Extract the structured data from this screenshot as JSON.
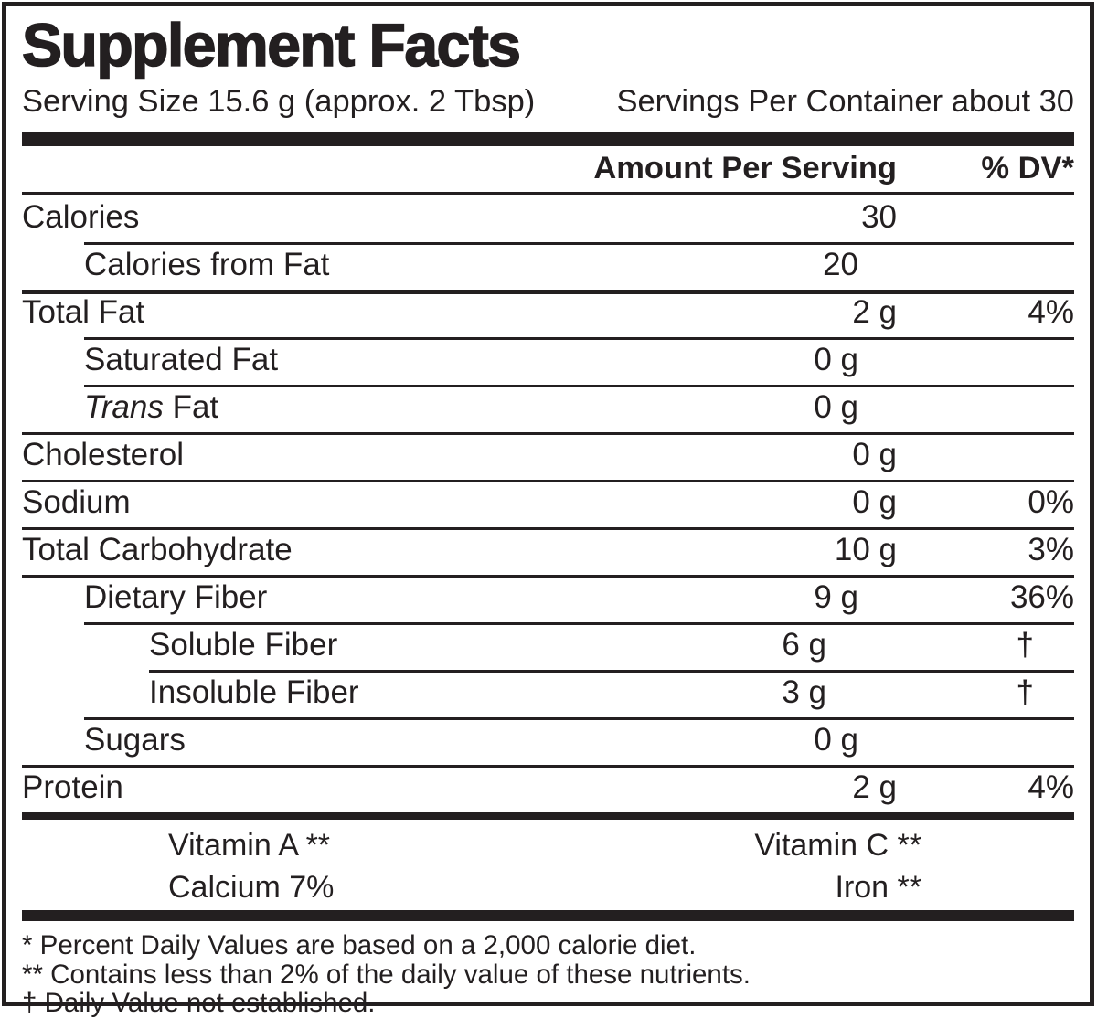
{
  "title": "Supplement Facts",
  "serving": {
    "size": "Serving Size 15.6 g (approx. 2 Tbsp)",
    "per_container": "Servings Per Container about 30"
  },
  "columns": {
    "amount": "Amount Per Serving",
    "dv": "% DV*"
  },
  "rows": [
    {
      "label": "Calories",
      "amount": "30",
      "dv": ""
    },
    {
      "label": "Calories from Fat",
      "amount": "20",
      "dv": ""
    },
    {
      "label": "Total Fat",
      "amount": "2 g",
      "dv": "4%"
    },
    {
      "label": "Saturated Fat",
      "amount": "0 g",
      "dv": ""
    },
    {
      "label_italic": "Trans",
      "label_rest": " Fat",
      "amount": "0 g",
      "dv": ""
    },
    {
      "label": "Cholesterol",
      "amount": "0 g",
      "dv": ""
    },
    {
      "label": "Sodium",
      "amount": "0 g",
      "dv": "0%"
    },
    {
      "label": "Total Carbohydrate",
      "amount": "10 g",
      "dv": "3%"
    },
    {
      "label": "Dietary Fiber",
      "amount": "9 g",
      "dv": "36%"
    },
    {
      "label": "Soluble Fiber",
      "amount": "6 g",
      "dv": "†"
    },
    {
      "label": "Insoluble Fiber",
      "amount": "3 g",
      "dv": "†"
    },
    {
      "label": "Sugars",
      "amount": "0 g",
      "dv": ""
    },
    {
      "label": "Protein",
      "amount": "2 g",
      "dv": "4%"
    }
  ],
  "vitamins": [
    {
      "left": "Vitamin A **",
      "right": "Vitamin C **"
    },
    {
      "left": "Calcium 7%",
      "right": "Iron **"
    }
  ],
  "footnotes": [
    "* Percent Daily Values are based on a 2,000 calorie diet.",
    "** Contains less than 2% of the daily value of these nutrients.",
    "† Daily Value not established."
  ],
  "colors": {
    "ink": "#231f20",
    "background": "#ffffff"
  }
}
